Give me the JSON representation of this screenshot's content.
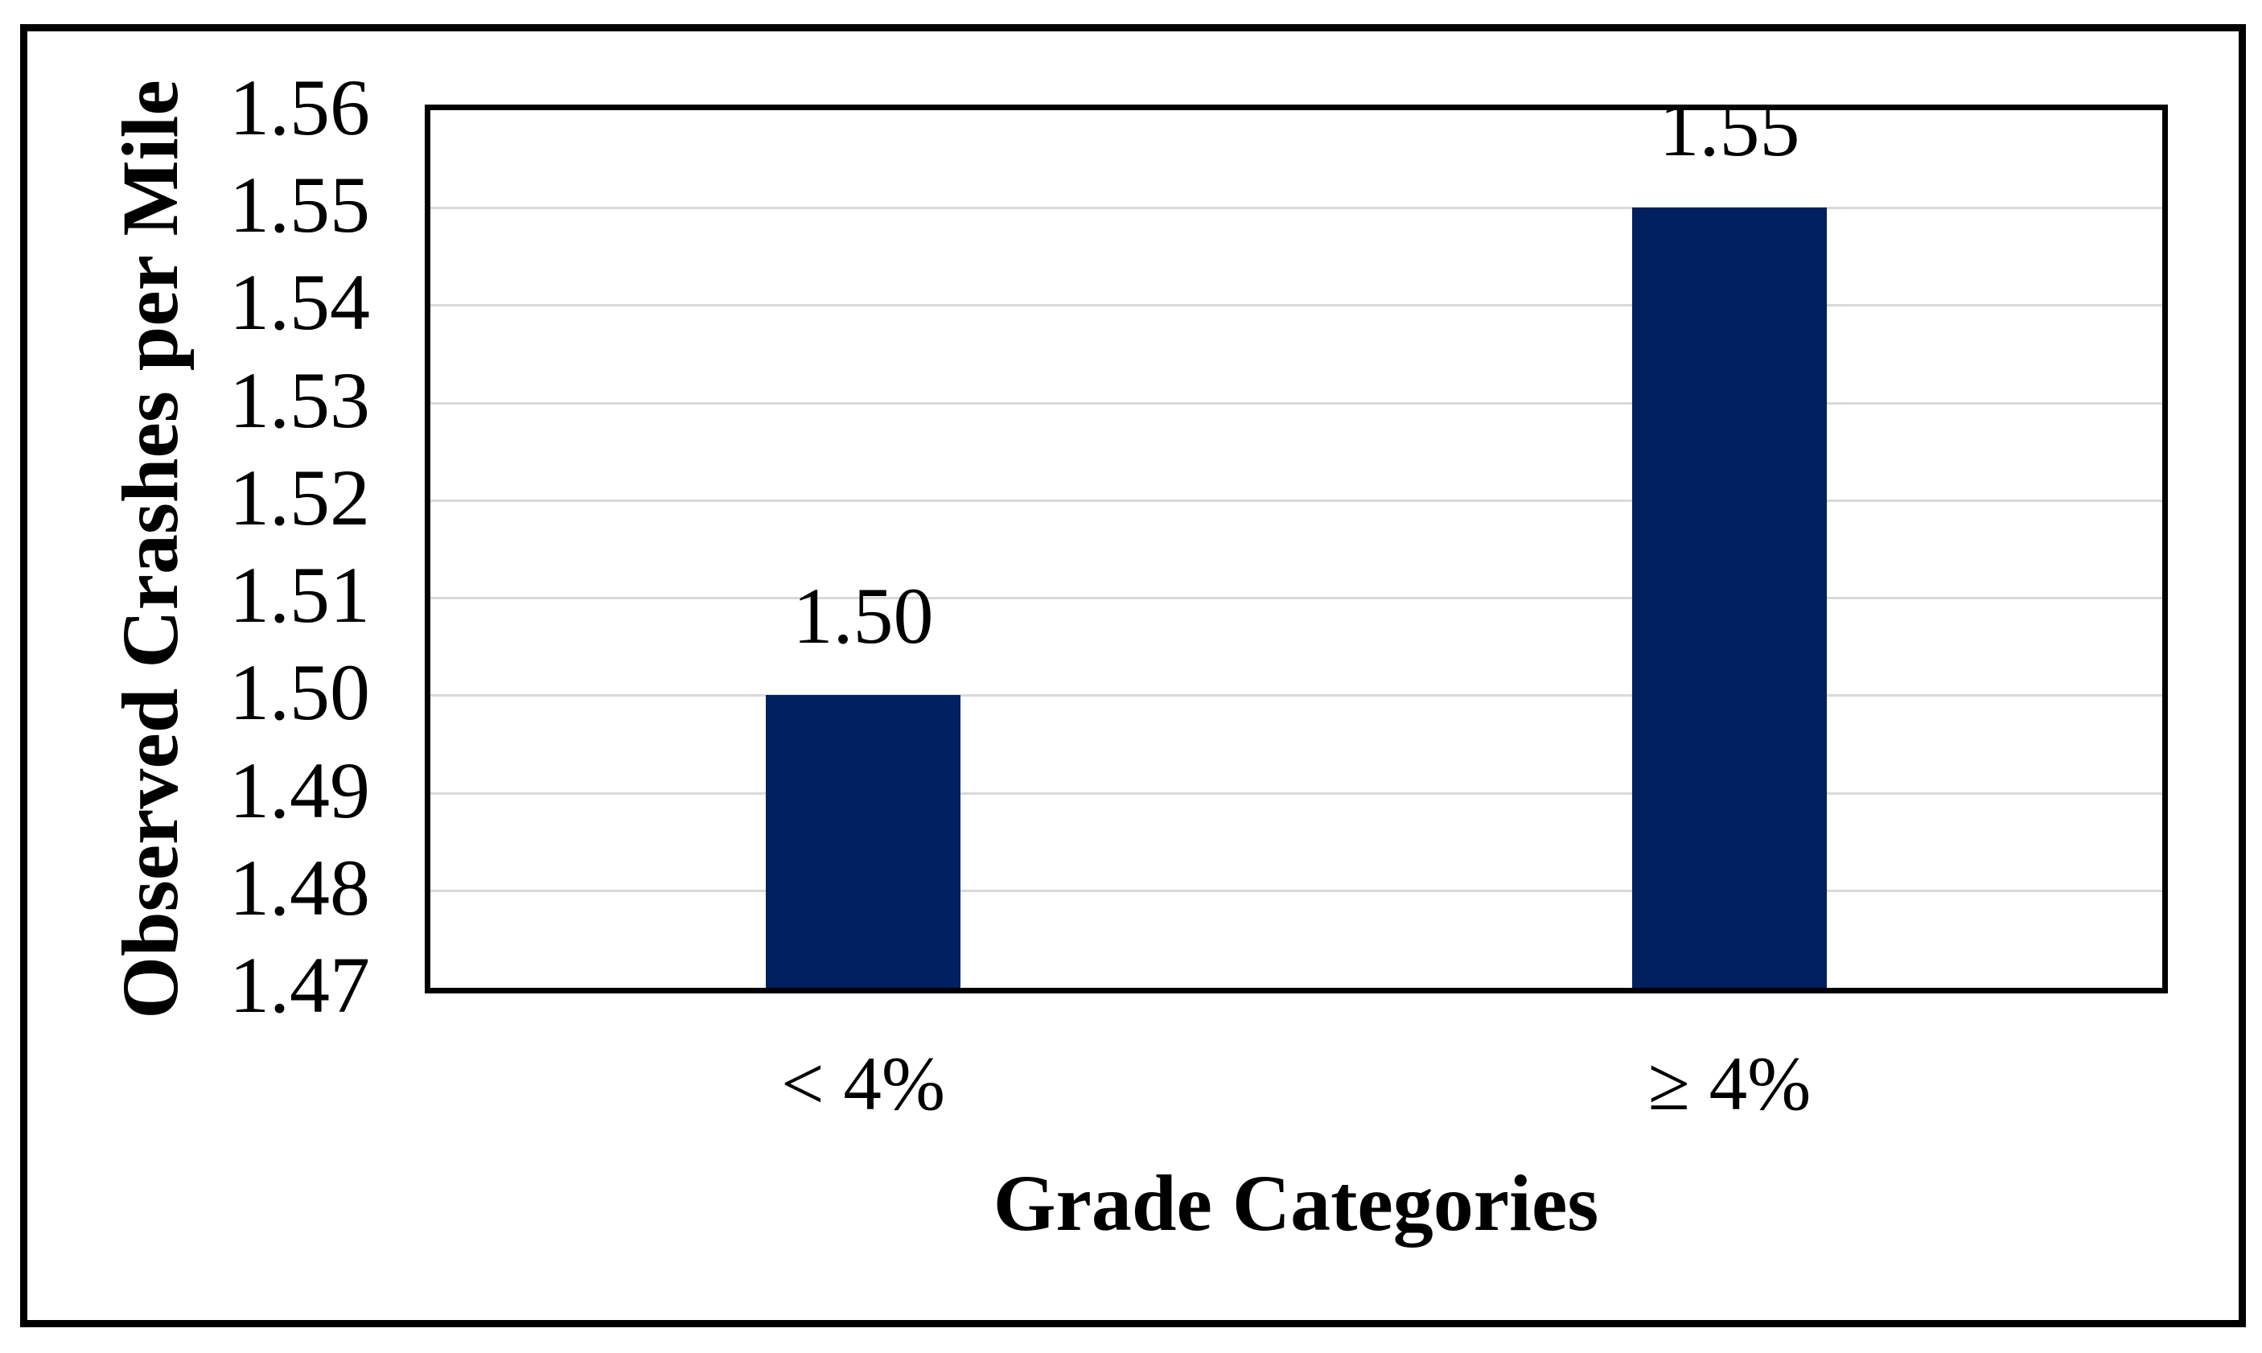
{
  "chart_data": {
    "type": "bar",
    "categories": [
      "< 4%",
      "≥ 4%"
    ],
    "values": [
      1.5,
      1.55
    ],
    "bar_labels": [
      "1.50",
      "1.55"
    ],
    "xlabel": "Grade Categories",
    "ylabel": "Observed Crashes per Mile",
    "ylim": [
      1.47,
      1.56
    ],
    "ytick_step": 0.01,
    "yticks": [
      "1.56",
      "1.55",
      "1.54",
      "1.53",
      "1.52",
      "1.51",
      "1.50",
      "1.49",
      "1.48",
      "1.47"
    ],
    "grid": true,
    "legend": "none",
    "bar_color": "#002060",
    "gridline_color": "#D9D9D9",
    "axis_border_color": "#000000",
    "background_color": "#FFFFFF"
  }
}
